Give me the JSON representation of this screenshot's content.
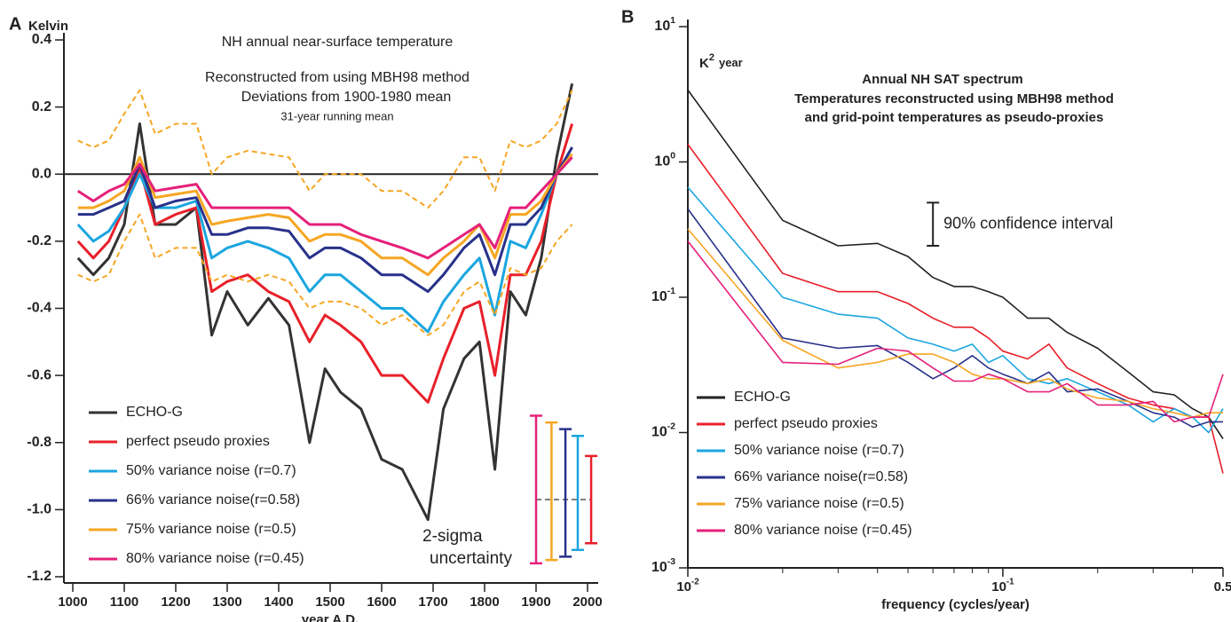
{
  "chart_data": [
    {
      "type": "line",
      "panel_label": "A",
      "ylabel": "Kelvin",
      "xlabel": "year A.D.",
      "title_lines": [
        "NH annual near-surface temperature",
        "Reconstructed from using MBH98 method",
        "Deviations from 1900-1980 mean",
        "31-year running mean"
      ],
      "xlim": [
        1000,
        2000
      ],
      "xticks": [
        1000,
        1100,
        1200,
        1300,
        1400,
        1500,
        1600,
        1700,
        1800,
        1900,
        2000
      ],
      "ylim": [
        -1.2,
        0.4
      ],
      "yticks": [
        0.4,
        0.2,
        {
          "value": 0,
          "label": "0.0"
        },
        -0.2,
        -0.4,
        -0.6,
        -0.8,
        {
          "value": -1,
          "label": "-1.0"
        },
        -1.2
      ],
      "reference_line": 0,
      "x": [
        1010,
        1040,
        1070,
        1100,
        1130,
        1160,
        1200,
        1240,
        1270,
        1300,
        1340,
        1380,
        1420,
        1460,
        1490,
        1520,
        1560,
        1600,
        1640,
        1690,
        1720,
        1760,
        1790,
        1820,
        1850,
        1880,
        1910,
        1940,
        1970
      ],
      "series": [
        {
          "name": "ECHO-G",
          "color": "#333333",
          "values": [
            -0.25,
            -0.3,
            -0.25,
            -0.15,
            0.15,
            -0.15,
            -0.15,
            -0.1,
            -0.48,
            -0.35,
            -0.45,
            -0.37,
            -0.45,
            -0.8,
            -0.58,
            -0.65,
            -0.7,
            -0.85,
            -0.88,
            -1.03,
            -0.7,
            -0.55,
            -0.5,
            -0.88,
            -0.35,
            -0.42,
            -0.25,
            0.05,
            0.27
          ]
        },
        {
          "name": "perfect pseudo proxies",
          "color": "#e8202a",
          "values": [
            -0.2,
            -0.25,
            -0.2,
            -0.1,
            0.02,
            -0.15,
            -0.12,
            -0.1,
            -0.35,
            -0.32,
            -0.3,
            -0.35,
            -0.38,
            -0.5,
            -0.42,
            -0.45,
            -0.5,
            -0.6,
            -0.6,
            -0.68,
            -0.55,
            -0.4,
            -0.38,
            -0.6,
            -0.3,
            -0.3,
            -0.2,
            0.0,
            0.15
          ]
        },
        {
          "name": "50% variance noise (r=0.7)",
          "color": "#1ba6e0",
          "values": [
            -0.15,
            -0.2,
            -0.17,
            -0.1,
            0.0,
            -0.1,
            -0.1,
            -0.08,
            -0.25,
            -0.22,
            -0.2,
            -0.22,
            -0.25,
            -0.35,
            -0.3,
            -0.3,
            -0.35,
            -0.4,
            -0.4,
            -0.47,
            -0.38,
            -0.3,
            -0.25,
            -0.42,
            -0.2,
            -0.22,
            -0.12,
            0.0,
            0.08
          ]
        },
        {
          "name": "66% variance noise(r=0.58)",
          "color": "#28318a",
          "values": [
            -0.12,
            -0.12,
            -0.1,
            -0.08,
            0.03,
            -0.1,
            -0.08,
            -0.07,
            -0.18,
            -0.18,
            -0.16,
            -0.16,
            -0.17,
            -0.25,
            -0.22,
            -0.22,
            -0.25,
            -0.3,
            -0.3,
            -0.35,
            -0.3,
            -0.22,
            -0.18,
            -0.3,
            -0.15,
            -0.15,
            -0.1,
            0.0,
            0.08
          ]
        },
        {
          "name": "75% variance noise (r=0.5)",
          "color": "#f6a623",
          "values": [
            -0.1,
            -0.1,
            -0.08,
            -0.05,
            0.05,
            -0.07,
            -0.06,
            -0.05,
            -0.15,
            -0.14,
            -0.13,
            -0.12,
            -0.13,
            -0.2,
            -0.18,
            -0.18,
            -0.2,
            -0.25,
            -0.25,
            -0.3,
            -0.25,
            -0.2,
            -0.15,
            -0.25,
            -0.12,
            -0.12,
            -0.08,
            0.0,
            0.06
          ]
        },
        {
          "name": "80% variance noise (r=0.45)",
          "color": "#e5207a",
          "values": [
            -0.05,
            -0.08,
            -0.05,
            -0.03,
            0.03,
            -0.05,
            -0.04,
            -0.03,
            -0.1,
            -0.1,
            -0.1,
            -0.1,
            -0.1,
            -0.15,
            -0.15,
            -0.15,
            -0.18,
            -0.2,
            -0.22,
            -0.25,
            -0.22,
            -0.18,
            -0.15,
            -0.22,
            -0.1,
            -0.1,
            -0.05,
            0.0,
            0.05
          ]
        },
        {
          "color": "#f6a623",
          "dashed": true,
          "values": [
            0.1,
            0.08,
            0.1,
            0.18,
            0.25,
            0.12,
            0.15,
            0.15,
            0.0,
            0.05,
            0.07,
            0.06,
            0.05,
            -0.05,
            0.0,
            0.0,
            0.0,
            -0.05,
            -0.05,
            -0.1,
            -0.05,
            0.05,
            0.05,
            -0.05,
            0.1,
            0.08,
            0.1,
            0.15,
            0.25
          ]
        },
        {
          "color": "#f6a623",
          "dashed": true,
          "values": [
            -0.3,
            -0.32,
            -0.3,
            -0.2,
            -0.12,
            -0.25,
            -0.22,
            -0.22,
            -0.32,
            -0.3,
            -0.32,
            -0.3,
            -0.32,
            -0.4,
            -0.38,
            -0.38,
            -0.4,
            -0.45,
            -0.42,
            -0.48,
            -0.45,
            -0.35,
            -0.32,
            -0.42,
            -0.28,
            -0.3,
            -0.28,
            -0.2,
            -0.15
          ]
        }
      ],
      "uncertainty_bars": [
        {
          "x": 1900,
          "low": -1.16,
          "high": -0.72,
          "color": "#e5207a"
        },
        {
          "x": 1930,
          "low": -1.15,
          "high": -0.74,
          "color": "#f6a623"
        },
        {
          "x": 1957,
          "low": -1.14,
          "high": -0.76,
          "color": "#28318a"
        },
        {
          "x": 1981,
          "low": -1.12,
          "high": -0.78,
          "color": "#1ba6e0"
        },
        {
          "x": 2007,
          "low": -1.1,
          "high": -0.84,
          "color": "#e8202a"
        }
      ],
      "uncertainty_center": -0.97,
      "annotation_lines": [
        "2-sigma",
        "uncertainty"
      ]
    },
    {
      "type": "line",
      "panel_label": "B",
      "xlog": true,
      "ylog": true,
      "ylabel": "K",
      "ylabel_exponent": "2",
      "ylabel_unit": "year",
      "xlabel": "frequency (cycles/year)",
      "title": "Annual NH SAT  spectrum",
      "subtitle_lines": [
        "Temperatures reconstructed using MBH98 method",
        "and grid-point temperatures as pseudo-proxies"
      ],
      "xlim": [
        0.01,
        0.5
      ],
      "xticks": [
        {
          "value": 0.01,
          "label": "10",
          "exponent": "-2"
        },
        {
          "value": 0.1,
          "label": "10",
          "exponent": "-1"
        },
        0.5
      ],
      "xminorticks": [
        0.02,
        0.03,
        0.04,
        0.05,
        0.06,
        0.07,
        0.08,
        0.09,
        0.2,
        0.3,
        0.4
      ],
      "ylim": [
        0.001,
        10
      ],
      "yticks": [
        {
          "value": 10,
          "label": "10",
          "exponent": "1"
        },
        {
          "value": 1,
          "label": "10",
          "exponent": "0"
        },
        {
          "value": 0.1,
          "label": "10",
          "exponent": "-1"
        },
        {
          "value": 0.01,
          "label": "10",
          "exponent": "-2"
        },
        {
          "value": 0.001,
          "label": "10",
          "exponent": "-3"
        }
      ],
      "x": [
        0.01,
        0.02,
        0.03,
        0.04,
        0.05,
        0.06,
        0.07,
        0.08,
        0.09,
        0.1,
        0.12,
        0.14,
        0.16,
        0.2,
        0.25,
        0.3,
        0.35,
        0.4,
        0.45,
        0.5
      ],
      "series": [
        {
          "name": "ECHO-G",
          "color": "#222222",
          "values": [
            3.4,
            0.37,
            0.24,
            0.25,
            0.2,
            0.14,
            0.12,
            0.12,
            0.11,
            0.1,
            0.07,
            0.07,
            0.055,
            0.042,
            0.028,
            0.02,
            0.019,
            0.015,
            0.013,
            0.009
          ]
        },
        {
          "name": "perfect pseudo proxies",
          "color": "#e8202a",
          "values": [
            1.35,
            0.15,
            0.11,
            0.11,
            0.09,
            0.07,
            0.06,
            0.06,
            0.05,
            0.04,
            0.035,
            0.045,
            0.03,
            0.023,
            0.018,
            0.016,
            0.015,
            0.013,
            0.013,
            0.005
          ]
        },
        {
          "name": "50% variance noise (r=0.7)",
          "color": "#1ba6e0",
          "values": [
            0.65,
            0.1,
            0.075,
            0.07,
            0.05,
            0.045,
            0.04,
            0.045,
            0.033,
            0.037,
            0.025,
            0.023,
            0.025,
            0.02,
            0.016,
            0.012,
            0.015,
            0.013,
            0.01,
            0.015
          ]
        },
        {
          "name": "66% variance noise(r=0.58)",
          "color": "#28318a",
          "values": [
            0.45,
            0.05,
            0.042,
            0.044,
            0.033,
            0.025,
            0.03,
            0.037,
            0.03,
            0.027,
            0.023,
            0.028,
            0.02,
            0.021,
            0.017,
            0.014,
            0.013,
            0.011,
            0.012,
            0.012
          ]
        },
        {
          "name": "75% variance noise (r=0.5)",
          "color": "#f6a623",
          "values": [
            0.32,
            0.048,
            0.03,
            0.033,
            0.038,
            0.038,
            0.033,
            0.027,
            0.025,
            0.025,
            0.023,
            0.025,
            0.021,
            0.018,
            0.017,
            0.015,
            0.014,
            0.013,
            0.014,
            0.014
          ]
        },
        {
          "name": "80% variance noise (r=0.45)",
          "color": "#e5207a",
          "values": [
            0.26,
            0.033,
            0.032,
            0.042,
            0.04,
            0.03,
            0.024,
            0.024,
            0.027,
            0.025,
            0.02,
            0.02,
            0.023,
            0.016,
            0.016,
            0.017,
            0.012,
            0.013,
            0.013,
            0.027
          ]
        }
      ],
      "confidence_bar": {
        "x": 0.06,
        "low": 0.24,
        "high": 0.5,
        "label": "90% confidence interval"
      }
    }
  ]
}
